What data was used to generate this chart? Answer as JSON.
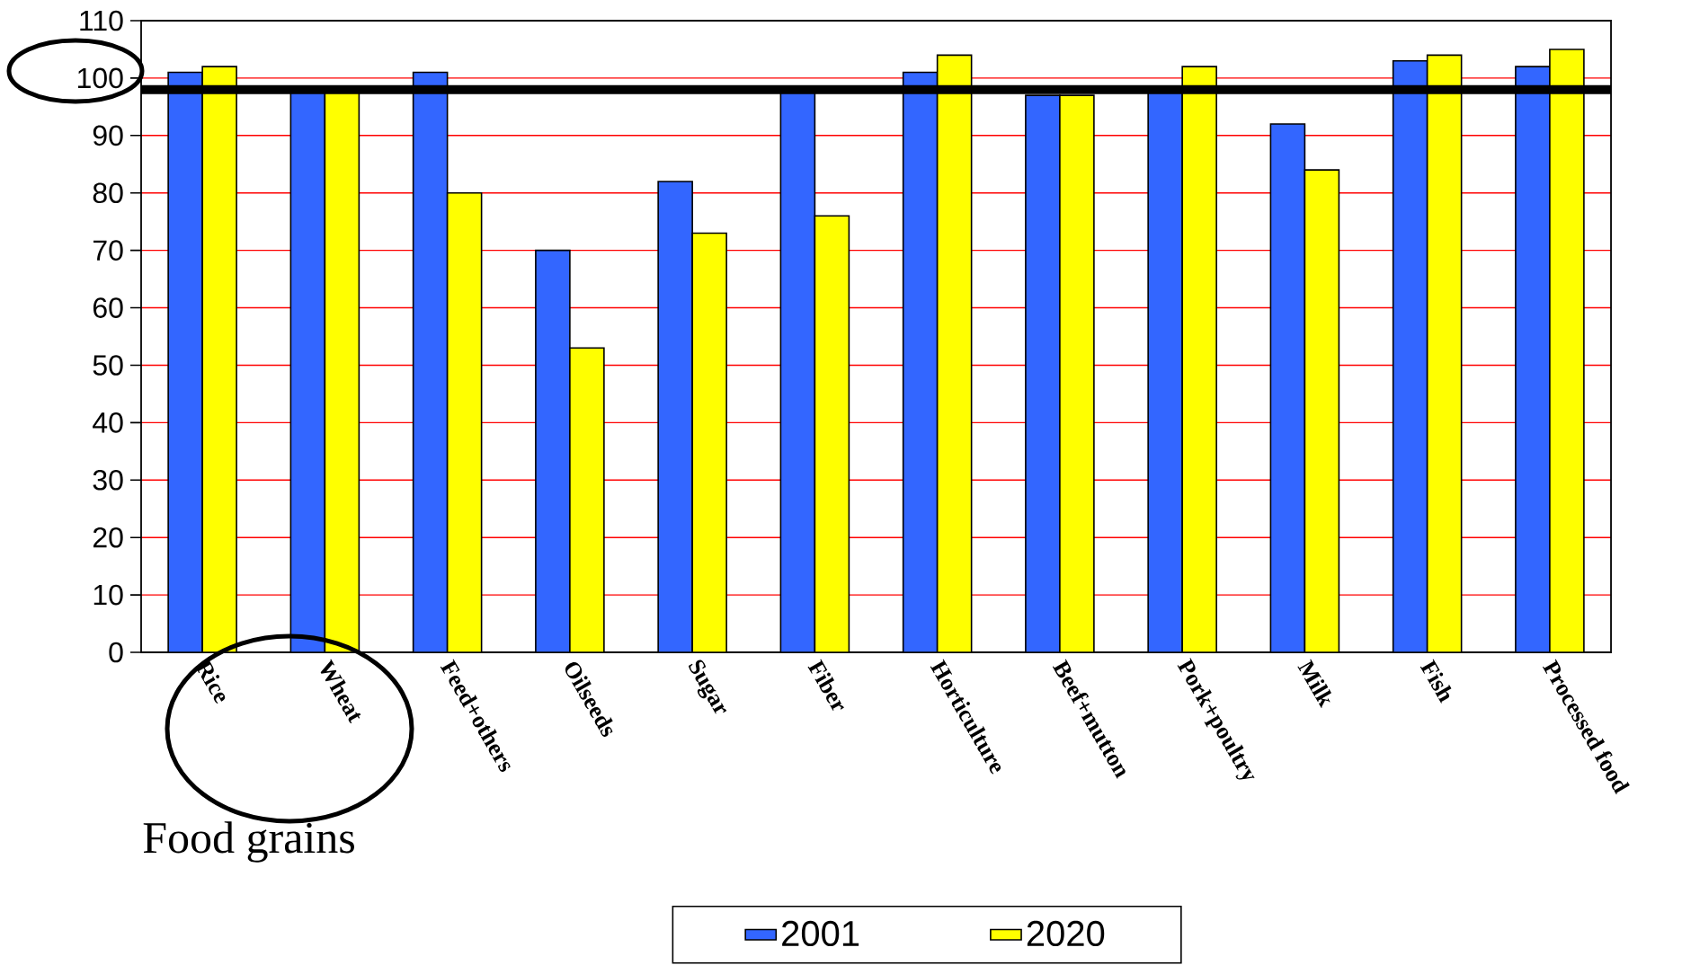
{
  "chart_data": {
    "type": "bar",
    "categories": [
      "Rice",
      "Wheat",
      "Feed+others",
      "Oilseeds",
      "Sugar",
      "Fiber",
      "Horticulture",
      "Beef+mutton",
      "Pork+poultry",
      "Milk",
      "Fish",
      "Processed food"
    ],
    "series": [
      {
        "name": "2001",
        "color": "#3366ff",
        "values": [
          101,
          98,
          101,
          70,
          82,
          98,
          101,
          97,
          98,
          92,
          103,
          102
        ]
      },
      {
        "name": "2020",
        "color": "#ffff00",
        "values": [
          102,
          98,
          80,
          53,
          73,
          76,
          104,
          97,
          102,
          84,
          104,
          105
        ]
      }
    ],
    "ylim": [
      0,
      110
    ],
    "yticks": [
      0,
      10,
      20,
      30,
      40,
      50,
      60,
      70,
      80,
      90,
      100,
      110
    ],
    "grid": "y",
    "legend": "bottom",
    "ref_lines": [
      {
        "axis": "y",
        "value": 98,
        "color": "#000000"
      }
    ],
    "annotations": [
      "Food grains"
    ]
  }
}
